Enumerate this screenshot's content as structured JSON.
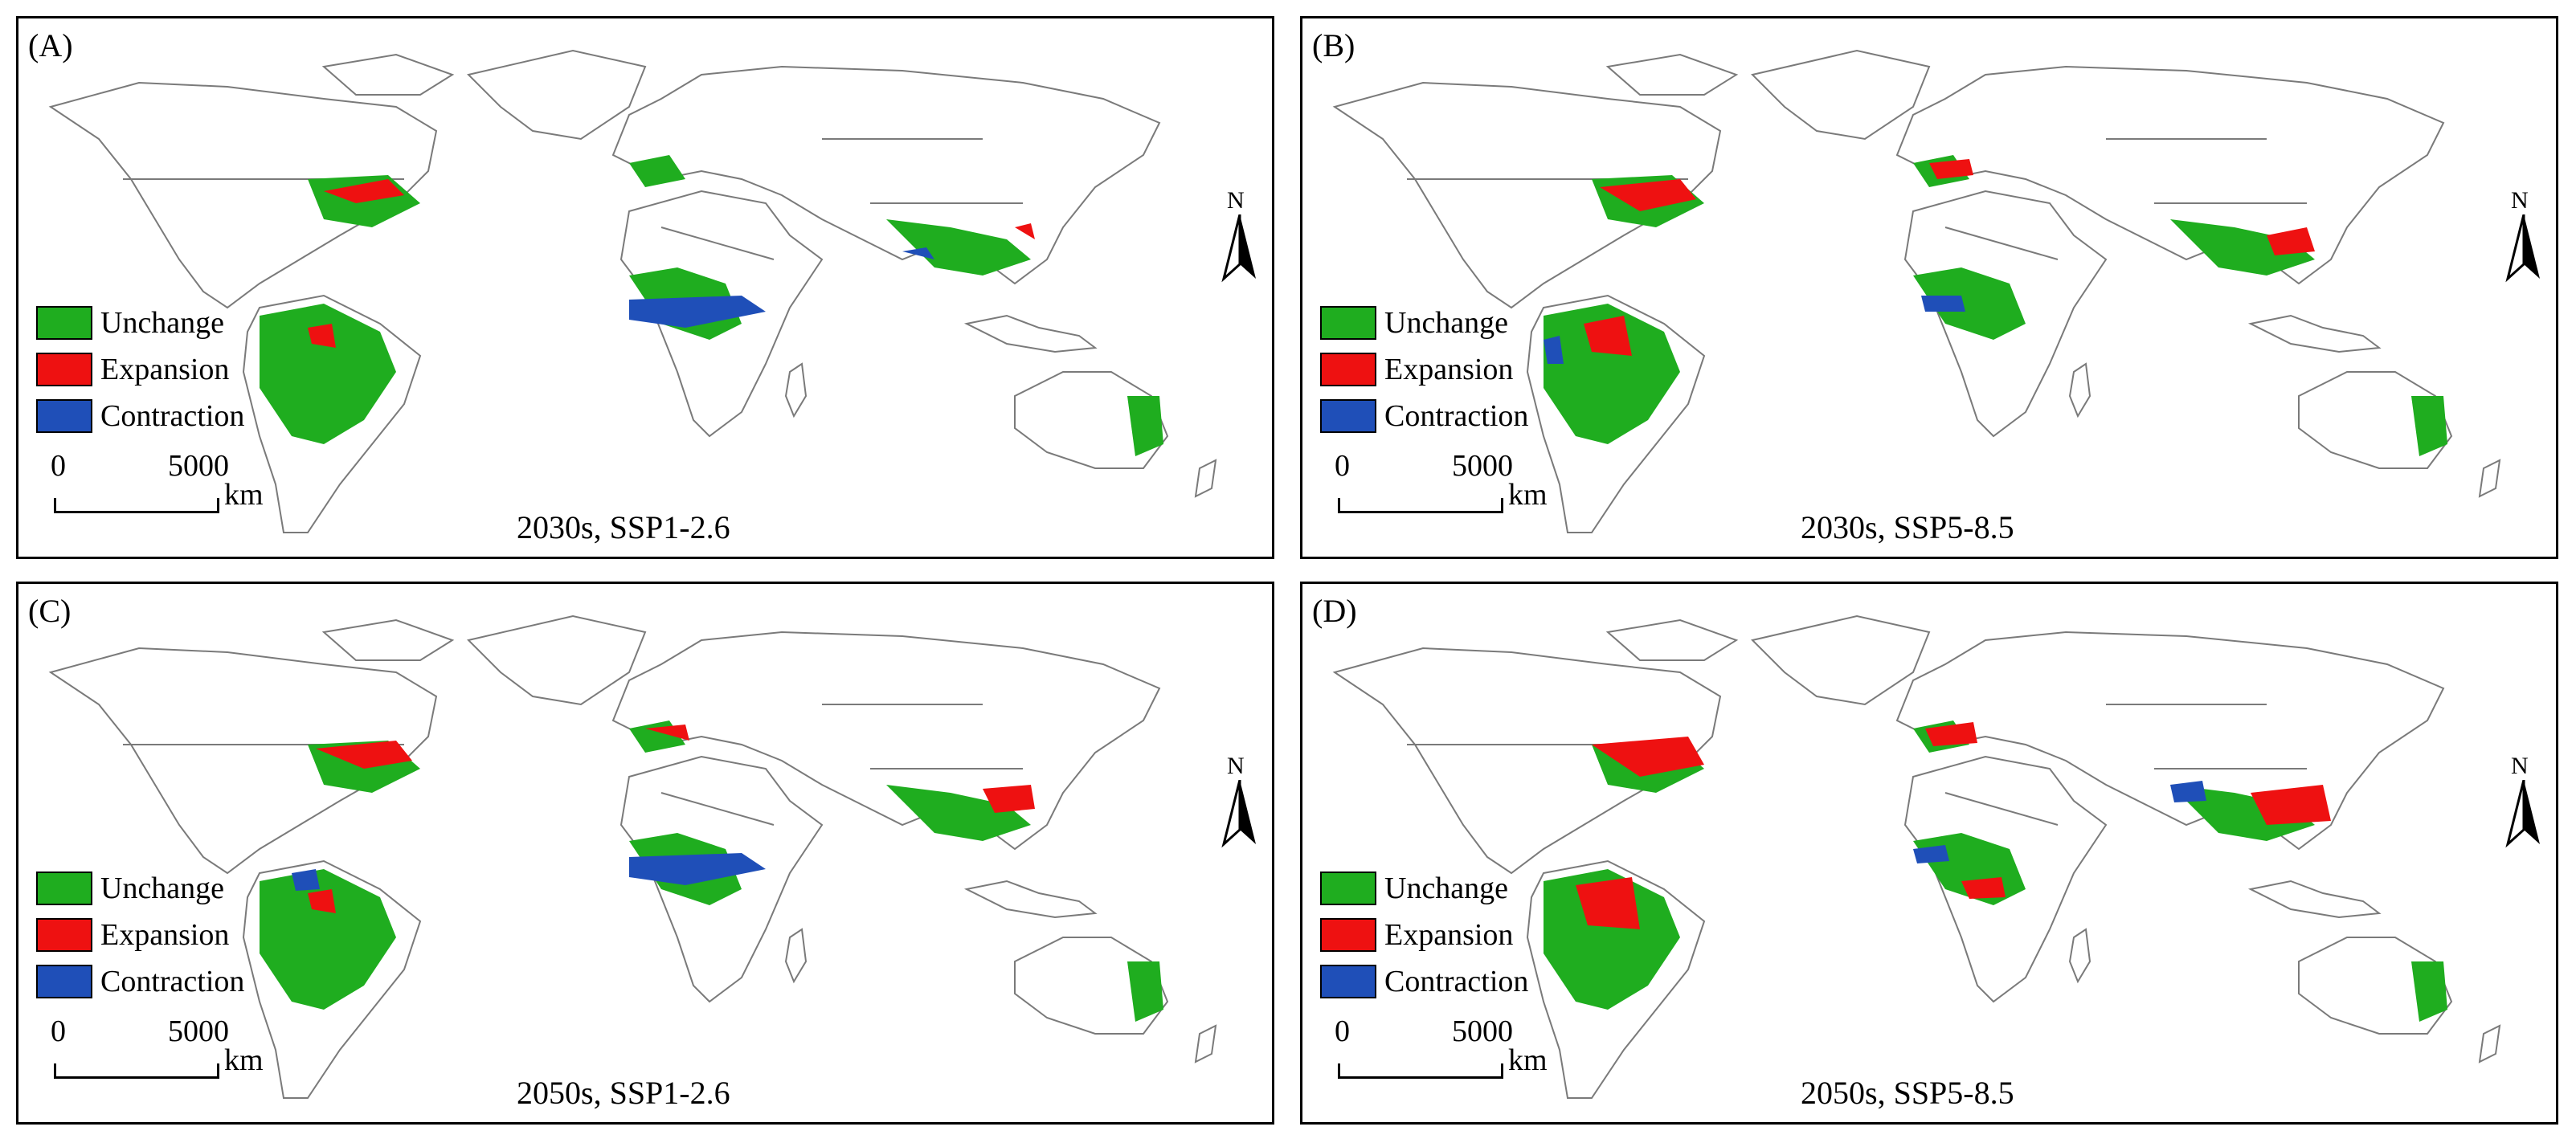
{
  "colors": {
    "unchange": "#1fad1f",
    "expansion": "#ee1111",
    "contraction": "#1f4fb8",
    "land_outline": "#7a7a7a"
  },
  "legend": {
    "unchange": "Unchange",
    "expansion": "Expansion",
    "contraction": "Contraction"
  },
  "scale_bar": {
    "zero": "0",
    "max": "5000",
    "unit": "km"
  },
  "north_arrow": {
    "label": "N",
    "icon": "north-arrow-icon"
  },
  "panels": [
    {
      "id": "A",
      "tag": "(A)",
      "caption": "2030s, SSP1-2.6"
    },
    {
      "id": "B",
      "tag": "(B)",
      "caption": "2030s, SSP5-8.5"
    },
    {
      "id": "C",
      "tag": "(C)",
      "caption": "2050s, SSP1-2.6"
    },
    {
      "id": "D",
      "tag": "(D)",
      "caption": "2050s, SSP5-8.5"
    }
  ]
}
